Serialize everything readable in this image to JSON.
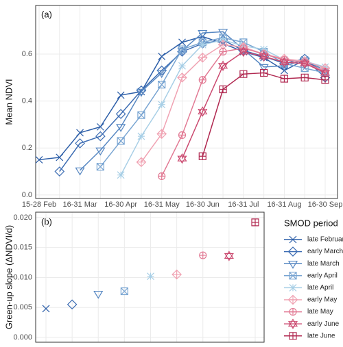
{
  "chart_data": [
    {
      "type": "line",
      "panel_label": "(a)",
      "y_label": "Mean NDVI",
      "categories": [
        "15-28 Feb",
        null,
        "16-31 Mar",
        null,
        "16-30 Apr",
        null,
        "16-31 May",
        null,
        "16-30 Jun",
        null,
        "16-31 Jul",
        null,
        "16-31 Aug",
        null,
        "16-30 Sep"
      ],
      "ylim": [
        -0.015,
        0.807
      ],
      "yticks": [
        {
          "value": 0,
          "label": "0.0"
        },
        0.2,
        0.4,
        0.6
      ],
      "grid": true,
      "series": [
        {
          "name": "late February",
          "color": "#2c5ea8",
          "marker": "x",
          "values": [
            0.15,
            0.16,
            0.265,
            0.29,
            0.425,
            0.44,
            0.59,
            0.65,
            0.675,
            0.645,
            0.61,
            0.585,
            0.53,
            0.575,
            0.52
          ]
        },
        {
          "name": "early March",
          "color": "#3d6db3",
          "marker": "diamond",
          "values": [
            null,
            0.1,
            0.22,
            0.25,
            0.345,
            0.445,
            0.53,
            0.61,
            0.645,
            0.66,
            0.615,
            0.59,
            0.56,
            0.58,
            0.5
          ]
        },
        {
          "name": "late March",
          "color": "#5687c2",
          "marker": "tri-down",
          "values": [
            null,
            null,
            0.105,
            0.19,
            0.29,
            0.44,
            0.52,
            0.615,
            0.69,
            0.695,
            0.62,
            0.545,
            0.55,
            0.575,
            0.53
          ]
        },
        {
          "name": "early April",
          "color": "#79a5d2",
          "marker": "square-x",
          "values": [
            null,
            null,
            null,
            0.12,
            0.23,
            0.34,
            0.47,
            0.62,
            0.65,
            0.67,
            0.65,
            0.61,
            0.56,
            0.54,
            0.52
          ]
        },
        {
          "name": "late April",
          "color": "#a8cfe6",
          "marker": "asterisk",
          "values": [
            null,
            null,
            null,
            null,
            0.085,
            0.25,
            0.385,
            0.55,
            0.64,
            0.66,
            0.635,
            0.62,
            0.575,
            0.57,
            0.545
          ]
        },
        {
          "name": "early May",
          "color": "#f0a2b2",
          "marker": "diamond-plus",
          "values": [
            null,
            null,
            null,
            null,
            null,
            0.14,
            0.26,
            0.5,
            0.585,
            0.64,
            0.63,
            0.6,
            0.58,
            0.57,
            0.54
          ]
        },
        {
          "name": "late May",
          "color": "#e27a94",
          "marker": "circle-plus",
          "values": [
            null,
            null,
            null,
            null,
            null,
            null,
            0.08,
            0.255,
            0.49,
            0.61,
            0.625,
            0.6,
            0.575,
            0.565,
            0.525
          ]
        },
        {
          "name": "early June",
          "color": "#cb4a70",
          "marker": "star",
          "values": [
            null,
            null,
            null,
            null,
            null,
            null,
            null,
            0.155,
            0.355,
            0.55,
            0.61,
            0.59,
            0.565,
            0.56,
            0.52
          ]
        },
        {
          "name": "late June",
          "color": "#b02850",
          "marker": "square-plus",
          "values": [
            null,
            null,
            null,
            null,
            null,
            null,
            null,
            null,
            0.165,
            0.45,
            0.515,
            0.52,
            0.495,
            0.5,
            0.49
          ]
        }
      ]
    },
    {
      "type": "scatter",
      "panel_label": "(b)",
      "y_label": "Green-up slope (ΔNDVI/d)",
      "legend_title": "SMOD period",
      "ylim": [
        -0.0008,
        0.0209
      ],
      "yticks": [
        {
          "value": 0,
          "label": "0.000"
        },
        {
          "value": 0.005,
          "label": "0.005"
        },
        {
          "value": 0.01,
          "label": "0.010"
        },
        {
          "value": 0.015,
          "label": "0.015"
        },
        {
          "value": 0.02,
          "label": "0.020"
        }
      ],
      "grid": true,
      "values": [
        0.0048,
        0.0055,
        0.0073,
        0.0077,
        0.0102,
        0.0105,
        0.0137,
        0.0136,
        0.0192
      ]
    }
  ]
}
